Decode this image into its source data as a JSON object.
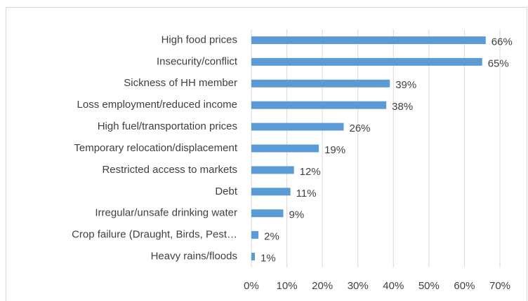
{
  "chart_data": {
    "type": "barh",
    "categories": [
      "High food prices",
      "Insecurity/conflict",
      "Sickness of HH member",
      "Loss employment/reduced income",
      "High fuel/transportation prices",
      "Temporary relocation/displacement",
      "Restricted access to markets",
      "Debt",
      "Irregular/unsafe drinking water",
      "Crop failure (Draught, Birds, Pest…",
      "Heavy rains/floods"
    ],
    "values": [
      66,
      65,
      39,
      38,
      26,
      19,
      12,
      11,
      9,
      2,
      1
    ],
    "value_labels": [
      "66%",
      "65%",
      "39%",
      "38%",
      "26%",
      "19%",
      "12%",
      "11%",
      "9%",
      "2%",
      "1%"
    ],
    "color": "#5b9bd5",
    "xlim": [
      0,
      70
    ],
    "xticks": [
      {
        "value": 0,
        "label": "0%"
      },
      {
        "value": 10,
        "label": "10%"
      },
      {
        "value": 20,
        "label": "20%"
      },
      {
        "value": 30,
        "label": "30%"
      },
      {
        "value": 40,
        "label": "40%"
      },
      {
        "value": 50,
        "label": "50%"
      },
      {
        "value": 60,
        "label": "60%"
      },
      {
        "value": 70,
        "label": "70%"
      }
    ],
    "grid": true
  }
}
